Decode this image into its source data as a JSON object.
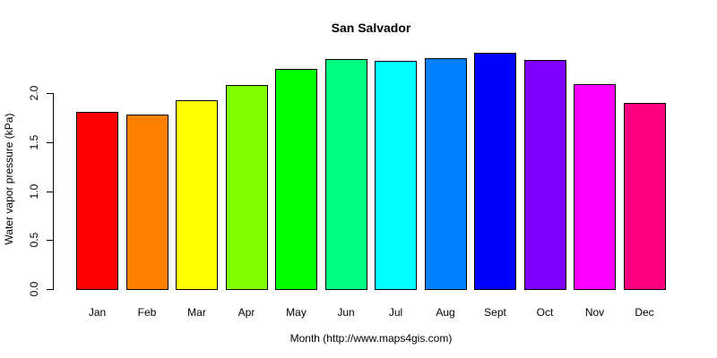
{
  "chart_data": {
    "type": "bar",
    "title": "San Salvador",
    "xlabel": "Month (http://www.maps4gis.com)",
    "ylabel": "Water vapor pressure (kPa)",
    "categories": [
      "Jan",
      "Feb",
      "Mar",
      "Apr",
      "May",
      "Jun",
      "Jul",
      "Aug",
      "Sept",
      "Oct",
      "Nov",
      "Dec"
    ],
    "values": [
      1.81,
      1.78,
      1.93,
      2.08,
      2.25,
      2.35,
      2.33,
      2.36,
      2.41,
      2.34,
      2.09,
      1.9
    ],
    "colors": [
      "#FF0000",
      "#FF8000",
      "#FFFF00",
      "#80FF00",
      "#00FF00",
      "#00FF80",
      "#00FFFF",
      "#0080FF",
      "#0000FF",
      "#8000FF",
      "#FF00FF",
      "#FF0080"
    ],
    "yticks": [
      "0.0",
      "0.5",
      "1.0",
      "1.5",
      "2.0"
    ],
    "ytick_values": [
      0,
      0.5,
      1.0,
      1.5,
      2.0
    ],
    "ylim": [
      0,
      2.5
    ],
    "grid": false,
    "legend": null
  }
}
